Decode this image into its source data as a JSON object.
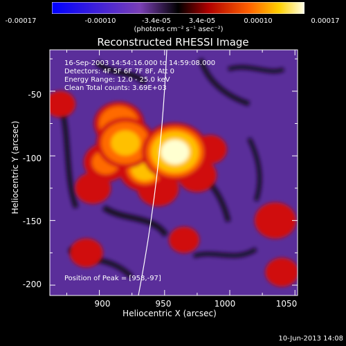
{
  "chart_data": {
    "type": "heatmap",
    "title": "Reconstructed RHESSI Image",
    "xlabel": "Heliocentric X (arcsec)",
    "ylabel": "Heliocentric Y (arcsec)",
    "xlim": [
      862,
      1052
    ],
    "ylim": [
      -208,
      -18
    ],
    "x_ticks": [
      "900",
      "950",
      "1000",
      "1050"
    ],
    "y_ticks": [
      "-50",
      "-100",
      "-150",
      "-200"
    ],
    "colorbar": {
      "ticks": [
        "-0.00017",
        "-0.00010",
        "-3.4e-05",
        "3.4e-05",
        "0.00010",
        "0.00017"
      ],
      "units": "(photons cm⁻² s⁻¹ asec⁻²)",
      "range": [
        -0.00017,
        0.00017
      ]
    },
    "annotations": {
      "time": "16-Sep-2003 14:54:16.000 to 14:59:08.000",
      "detectors": "Detectors: 4F 5F 6F 7F 8F, Att 0",
      "energy": "Energy Range: 12.0 - 25.0 keV",
      "clean": "Clean      Total counts: 3.69E+03",
      "peak": "Position of Peak = [958,-97]"
    },
    "sources": [
      {
        "x": 958,
        "y": -97,
        "value": 0.00017
      },
      {
        "x": 920,
        "y": -90,
        "value": 0.00014
      },
      {
        "x": 915,
        "y": -75,
        "value": 0.00011
      },
      {
        "x": 935,
        "y": -110,
        "value": 0.00012
      },
      {
        "x": 905,
        "y": -105,
        "value": 9e-05
      },
      {
        "x": 945,
        "y": -125,
        "value": 8e-05
      },
      {
        "x": 975,
        "y": -115,
        "value": 7e-05
      },
      {
        "x": 895,
        "y": -125,
        "value": 6e-05
      },
      {
        "x": 1035,
        "y": -150,
        "value": 8e-05
      },
      {
        "x": 1040,
        "y": -190,
        "value": 5e-05
      },
      {
        "x": 890,
        "y": -175,
        "value": 5e-05
      },
      {
        "x": 965,
        "y": -165,
        "value": 4e-05
      },
      {
        "x": 985,
        "y": -95,
        "value": 5e-05
      },
      {
        "x": 870,
        "y": -60,
        "value": 4e-05
      }
    ]
  },
  "footer": {
    "date": "10-Jun-2013 14:08"
  }
}
